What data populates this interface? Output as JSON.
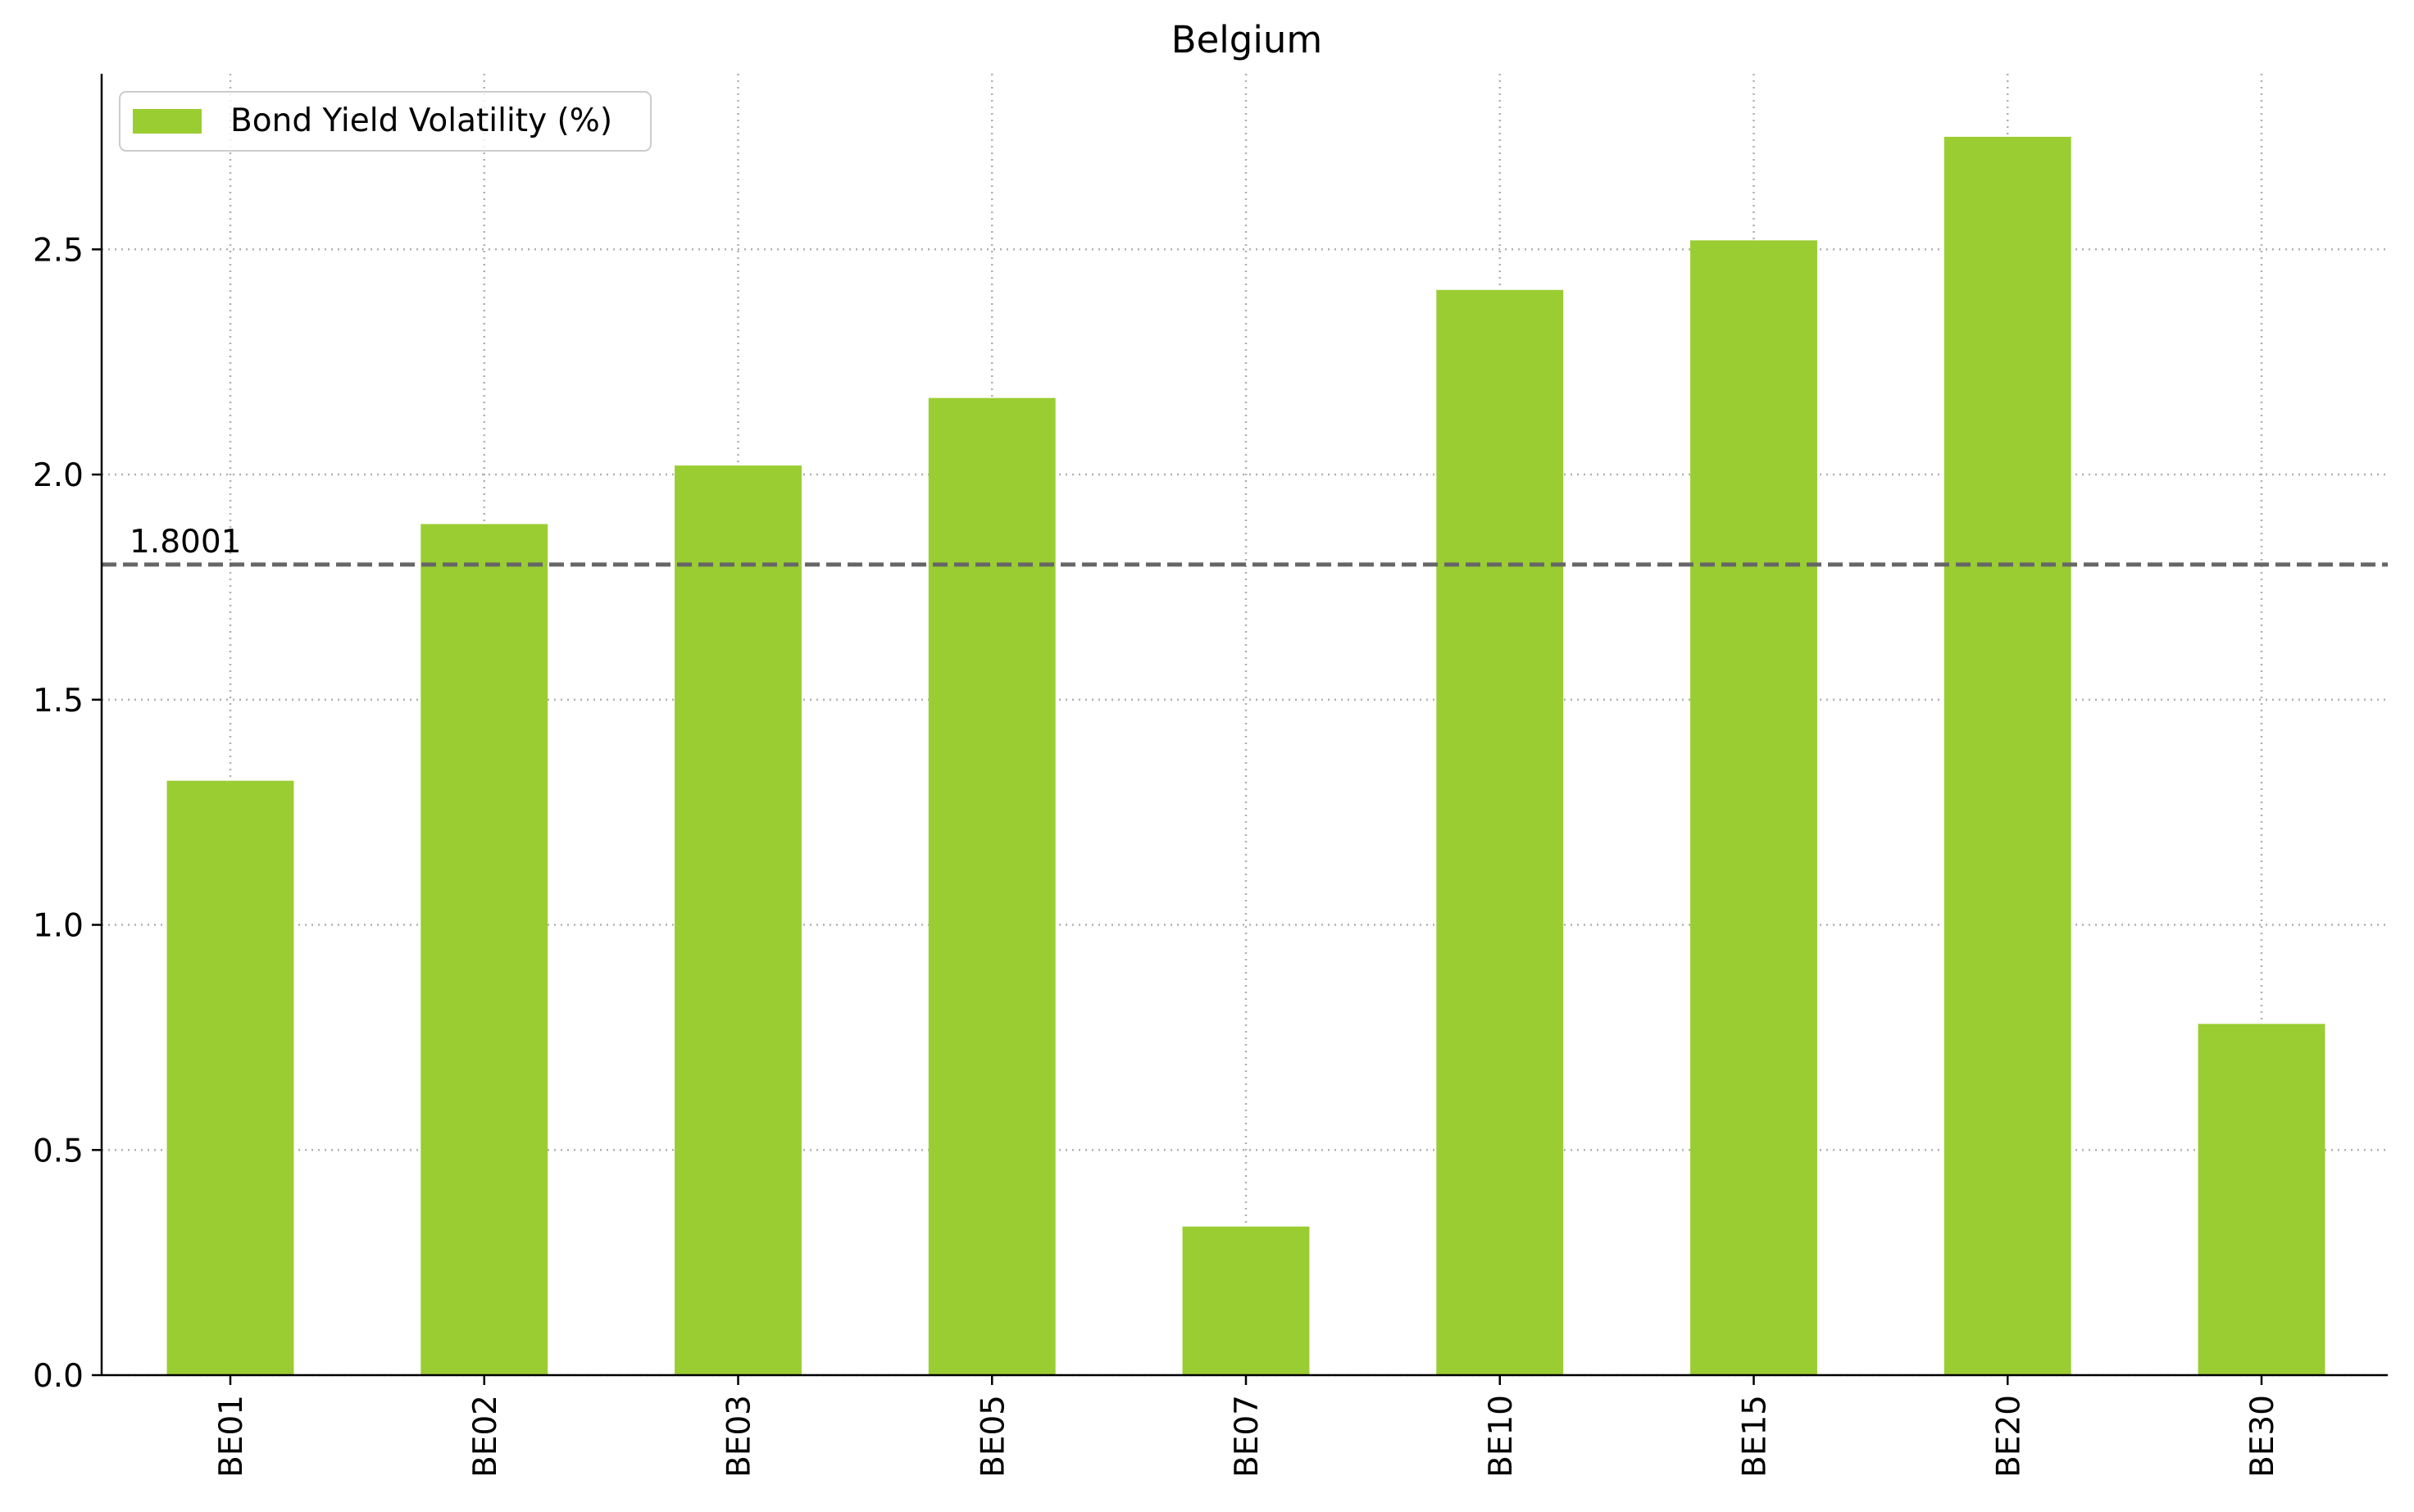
{
  "chart_data": {
    "type": "bar",
    "title": "Belgium",
    "xlabel": "",
    "ylabel": "",
    "categories": [
      "BE01",
      "BE02",
      "BE03",
      "BE05",
      "BE07",
      "BE10",
      "BE15",
      "BE20",
      "BE30"
    ],
    "series": [
      {
        "name": "Bond Yield Volatility (%)",
        "values": [
          1.32,
          1.89,
          2.02,
          2.17,
          0.33,
          2.41,
          2.52,
          2.75,
          0.78
        ],
        "color": "#9acd32"
      }
    ],
    "reference_line": {
      "value": 1.8001,
      "label": "1.8001",
      "color": "#666666",
      "style": "dashed"
    },
    "ylim": [
      0,
      2.89
    ],
    "yticks": [
      0.0,
      0.5,
      1.0,
      1.5,
      2.0,
      2.5
    ],
    "ytick_labels": [
      "0.0",
      "0.5",
      "1.0",
      "1.5",
      "2.0",
      "2.5"
    ],
    "grid": true,
    "legend_position": "top-left"
  }
}
